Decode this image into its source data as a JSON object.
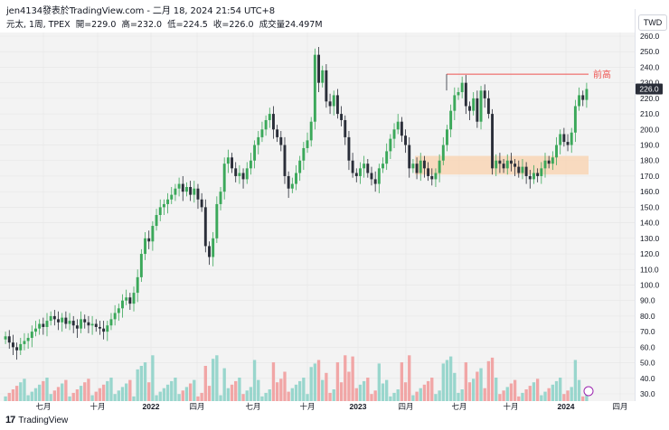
{
  "header": {
    "text": "jen4134發表於TradingView.com - 二月 18, 2024 21:54 UTC+8"
  },
  "info": {
    "symbol": "元太, 1周, TPEX",
    "open": "開=229.0",
    "high": "高=232.0",
    "low": "低=224.5",
    "close": "收=226.0",
    "volume": "成交量24.497M"
  },
  "currency_label": "TWD",
  "footer": {
    "brand": "TradingView"
  },
  "colors": {
    "up": "#3ba85a",
    "down": "#2a2e39",
    "vol_up": "#8fd3c9",
    "vol_down": "#f19d9d",
    "zone": "#f8d5b5",
    "resistance": "#ef5350",
    "grid": "#e6e6e6"
  },
  "chart_data": {
    "type": "candlestick",
    "annotation": "前高",
    "resistance_level": 235.5,
    "support_zone": [
      171,
      183
    ],
    "last_price": "226.0",
    "ylim": [
      30,
      260
    ],
    "y_ticks": [
      "260.0",
      "250.0",
      "240.0",
      "230.0",
      "220.0",
      "210.0",
      "200.0",
      "190.0",
      "180.0",
      "170.0",
      "160.0",
      "150.0",
      "140.0",
      "130.0",
      "120.0",
      "110.0",
      "100.0",
      "90.0",
      "80.0",
      "70.0",
      "60.0",
      "50.0",
      "40.0",
      "30.0"
    ],
    "x_ticks": [
      "七月",
      "十月",
      "2022",
      "四月",
      "七月",
      "十月",
      "2023",
      "四月",
      "七月",
      "十月",
      "2024",
      "四月"
    ],
    "closes": [
      67,
      63,
      60,
      58,
      62,
      64,
      66,
      70,
      72,
      75,
      73,
      77,
      80,
      78,
      76,
      79,
      75,
      77,
      74,
      72,
      78,
      76,
      74,
      75,
      73,
      72,
      70,
      74,
      78,
      82,
      85,
      90,
      92,
      88,
      95,
      105,
      120,
      130,
      128,
      138,
      145,
      150,
      152,
      155,
      158,
      162,
      165,
      160,
      163,
      158,
      162,
      155,
      150,
      125,
      118,
      130,
      152,
      160,
      178,
      182,
      175,
      170,
      172,
      168,
      175,
      180,
      190,
      195,
      200,
      206,
      210,
      200,
      195,
      190,
      170,
      162,
      165,
      172,
      180,
      188,
      193,
      205,
      248,
      230,
      238,
      218,
      215,
      222,
      210,
      206,
      195,
      180,
      172,
      170,
      175,
      178,
      172,
      168,
      165,
      175,
      178,
      186,
      194,
      200,
      205,
      196,
      190,
      175,
      178,
      172,
      180,
      175,
      170,
      168,
      172,
      180,
      190,
      200,
      212,
      222,
      224,
      230,
      215,
      212,
      220,
      205,
      225,
      220,
      210,
      175,
      180,
      178,
      175,
      180,
      178,
      176,
      172,
      176,
      170,
      168,
      172,
      170,
      175,
      180,
      178,
      182,
      190,
      197,
      192,
      190,
      198,
      215,
      222,
      219,
      226
    ],
    "volume_note": "volume shown as secondary bars (M)"
  }
}
